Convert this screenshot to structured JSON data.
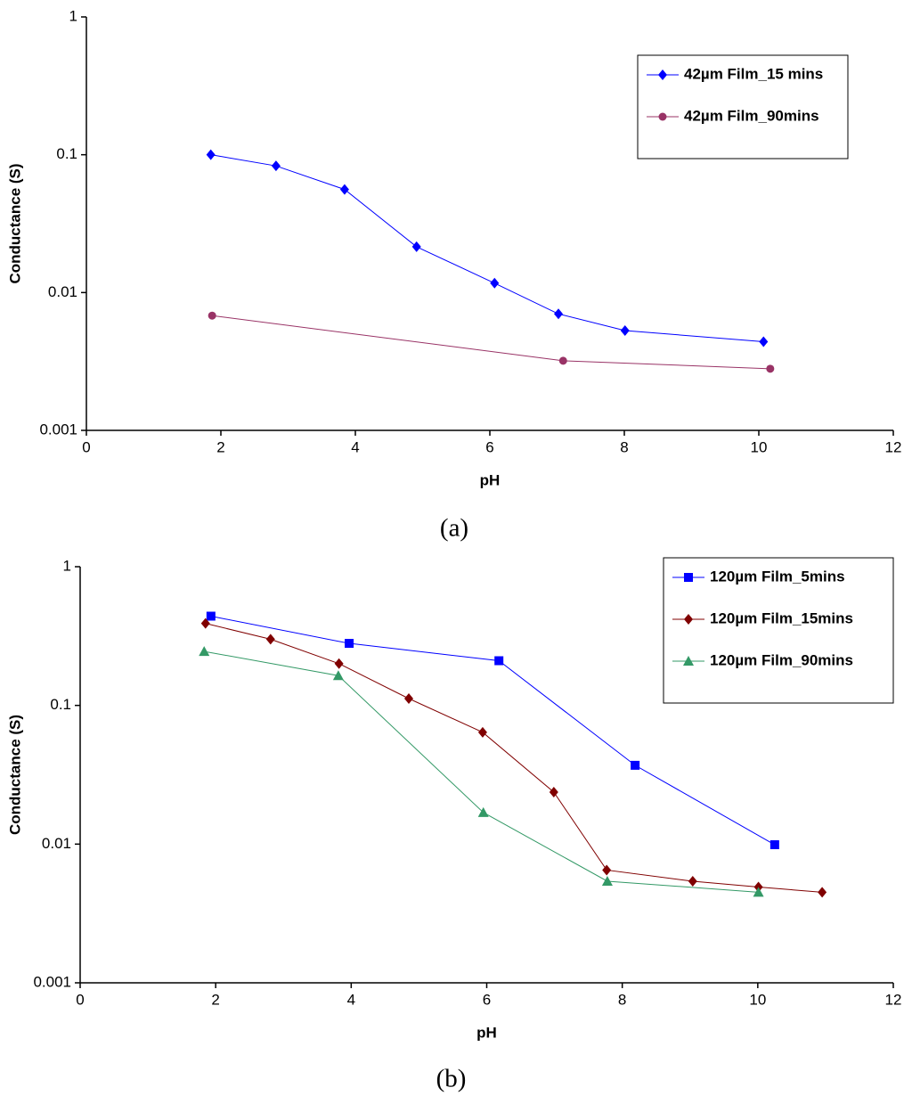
{
  "chart_data": [
    {
      "type": "line",
      "caption": "(a)",
      "x_label": "pH",
      "y_label": "Conductance (S)",
      "xlim": [
        0,
        12
      ],
      "xticks": [
        0,
        2,
        4,
        6,
        8,
        10,
        12
      ],
      "ylim": [
        0.001,
        1
      ],
      "yticks": [
        0.001,
        0.01,
        0.1,
        1
      ],
      "y_log": true,
      "grid": false,
      "legend": "upper right",
      "series": [
        {
          "name": "42µm Film_15 mins",
          "color": "#0000ff",
          "marker": "diamond",
          "x": [
            1.85,
            2.82,
            3.84,
            4.91,
            6.07,
            7.02,
            8.01,
            10.07
          ],
          "values": [
            0.1,
            0.083,
            0.056,
            0.0215,
            0.0117,
            0.007,
            0.0053,
            0.0044
          ]
        },
        {
          "name": "42µm Film_90mins",
          "color": "#993366",
          "marker": "circle",
          "x": [
            1.87,
            7.09,
            10.17
          ],
          "values": [
            0.0068,
            0.0032,
            0.0028
          ]
        }
      ]
    },
    {
      "type": "line",
      "caption": "(b)",
      "x_label": "pH",
      "y_label": "Conductance (S)",
      "xlim": [
        0,
        12
      ],
      "xticks": [
        0,
        2,
        4,
        6,
        8,
        10,
        12
      ],
      "ylim": [
        0.001,
        1
      ],
      "yticks": [
        0.001,
        0.01,
        0.1,
        1
      ],
      "y_log": true,
      "grid": false,
      "legend": "upper right",
      "series": [
        {
          "name": "120µm Film_5mins",
          "color": "#0000ff",
          "marker": "square",
          "x": [
            1.93,
            3.97,
            6.18,
            8.19,
            10.25
          ],
          "values": [
            0.44,
            0.28,
            0.21,
            0.037,
            0.0099
          ]
        },
        {
          "name": "120µm Film_15mins",
          "color": "#800000",
          "marker": "diamond",
          "x": [
            1.85,
            2.81,
            3.82,
            4.85,
            5.94,
            6.99,
            7.77,
            9.04,
            10.01,
            10.95
          ],
          "values": [
            0.39,
            0.3,
            0.2,
            0.112,
            0.064,
            0.0237,
            0.0065,
            0.0054,
            0.0049,
            0.0045
          ]
        },
        {
          "name": "120µm Film_90mins",
          "color": "#339966",
          "marker": "triangle",
          "x": [
            1.83,
            3.81,
            5.95,
            7.78,
            10.01
          ],
          "values": [
            0.245,
            0.164,
            0.0169,
            0.0054,
            0.0045
          ]
        }
      ]
    }
  ]
}
